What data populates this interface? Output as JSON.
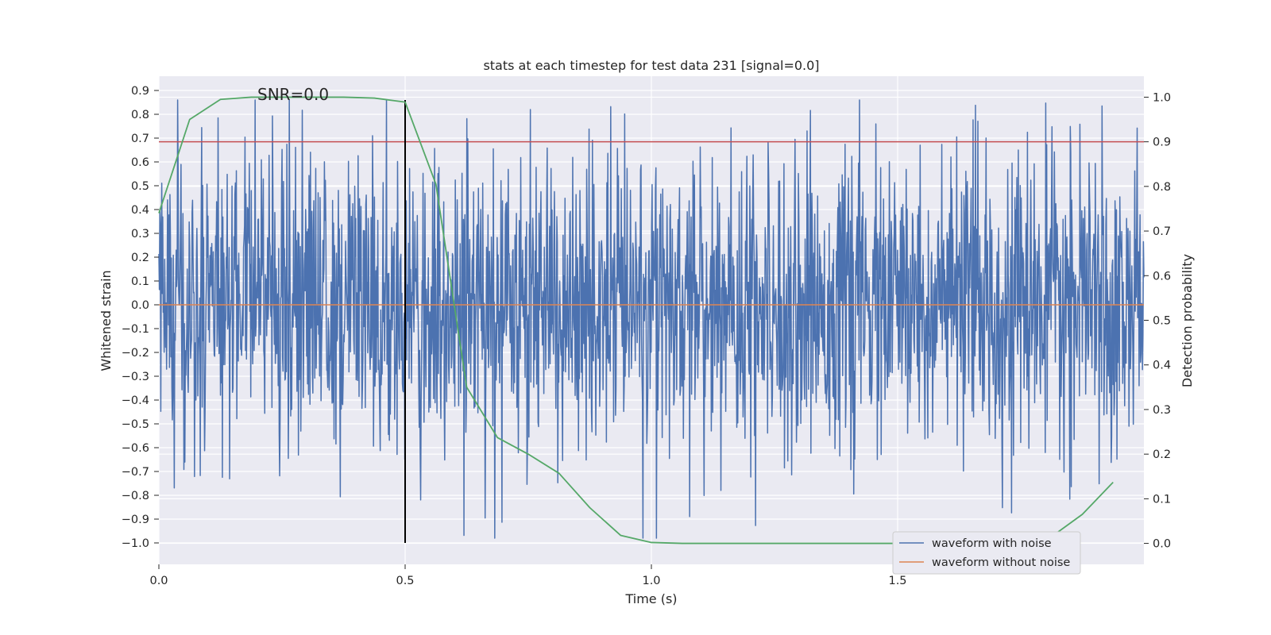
{
  "chart_data": {
    "type": "line",
    "title": "stats at each timestep for test data 231 [signal=0.0]",
    "xlabel": "Time (s)",
    "ylabel": "Whitened strain",
    "ylabel_right": "Detection probability",
    "xlim": [
      0.0,
      2.0
    ],
    "ylim": [
      -1.09,
      0.96
    ],
    "ylim_right": [
      -0.047,
      1.047
    ],
    "x_ticks": [
      "0.0",
      "0.5",
      "1.0",
      "1.5"
    ],
    "x_tick_values": [
      0.0,
      0.5,
      1.0,
      1.5
    ],
    "y_ticks": [
      "0.9",
      "0.8",
      "0.7",
      "0.6",
      "0.5",
      "0.4",
      "0.3",
      "0.2",
      "0.1",
      "0.0",
      "−0.1",
      "−0.2",
      "−0.3",
      "−0.4",
      "−0.5",
      "−0.6",
      "−0.7",
      "−0.8",
      "−0.9",
      "−1.0"
    ],
    "y_tick_values": [
      0.9,
      0.8,
      0.7,
      0.6,
      0.5,
      0.4,
      0.3,
      0.2,
      0.1,
      0.0,
      -0.1,
      -0.2,
      -0.3,
      -0.4,
      -0.5,
      -0.6,
      -0.7,
      -0.8,
      -0.9,
      -1.0
    ],
    "y_ticks_right": [
      "1.0",
      "0.9",
      "0.8",
      "0.7",
      "0.6",
      "0.5",
      "0.4",
      "0.3",
      "0.2",
      "0.1",
      "0.0"
    ],
    "y_tick_values_right": [
      1.0,
      0.9,
      0.8,
      0.7,
      0.6,
      0.5,
      0.4,
      0.3,
      0.2,
      0.1,
      0.0
    ],
    "annotation": "SNR=0.0",
    "annotation_position": [
      0.2,
      0.86
    ],
    "legend": {
      "placement": "lower-right",
      "entries": [
        "waveform with noise",
        "waveform without noise"
      ]
    },
    "series": [
      {
        "name": "waveform with noise",
        "color": "#4c72b0",
        "axis": "left",
        "x_range": [
          0.0,
          2.0
        ],
        "n_samples": 2048,
        "amplitude_std": 0.3,
        "clip": [
          -0.98,
          0.86
        ],
        "note": "whitened gaussian noise, values approximated"
      },
      {
        "name": "waveform without noise",
        "color": "#dd8452",
        "axis": "left",
        "x": [
          0.0,
          2.0
        ],
        "y": [
          0.0,
          0.0
        ]
      },
      {
        "name": "detection probability",
        "color": "#55a868",
        "axis": "right",
        "x": [
          0.0,
          0.0625,
          0.125,
          0.1875,
          0.25,
          0.3125,
          0.375,
          0.4375,
          0.5,
          0.5625,
          0.625,
          0.6875,
          0.75,
          0.8125,
          0.875,
          0.9375,
          1.0,
          1.0625,
          1.125,
          1.1875,
          1.25,
          1.3125,
          1.375,
          1.4375,
          1.5,
          1.5625,
          1.625,
          1.6875,
          1.75,
          1.8125,
          1.875,
          1.9375
        ],
        "y": [
          0.74,
          0.95,
          0.995,
          1.0,
          1.0,
          1.0,
          1.0,
          0.998,
          0.989,
          0.805,
          0.35,
          0.237,
          0.2,
          0.157,
          0.08,
          0.018,
          0.002,
          0.0,
          0.0,
          0.0,
          0.0,
          0.0,
          0.0,
          0.0,
          0.0,
          0.0,
          0.0,
          0.0,
          0.0,
          0.015,
          0.065,
          0.137
        ]
      }
    ],
    "hlines": [
      {
        "name": "threshold",
        "color": "#c44e52",
        "axis": "right",
        "value": 0.9
      }
    ],
    "vlines": [
      {
        "name": "marker",
        "color": "#000000",
        "x": 0.5,
        "y_from": -1.0,
        "y_to": 0.86
      }
    ]
  }
}
